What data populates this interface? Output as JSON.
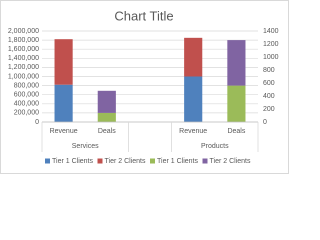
{
  "chart_data": {
    "type": "stacked-bar",
    "title": "Chart Title",
    "category_groups": [
      {
        "label": "Services",
        "categories": [
          "Revenue",
          "Deals"
        ]
      },
      {
        "label": null,
        "categories": [
          null
        ]
      },
      {
        "label": "Products",
        "categories": [
          "Revenue",
          "Deals"
        ]
      }
    ],
    "series": [
      {
        "name": "Tier 1 Clients",
        "color": "#4f81bd",
        "axis": "y",
        "values": [
          820000,
          null,
          null,
          1000000,
          null
        ]
      },
      {
        "name": "Tier 2 Clients",
        "color": "#c0504d",
        "axis": "y",
        "values": [
          1000000,
          null,
          null,
          850000,
          null
        ]
      },
      {
        "name": "Tier 1 Clients",
        "color": "#9bbb59",
        "axis": "y2",
        "values": [
          null,
          140,
          null,
          null,
          560
        ]
      },
      {
        "name": "Tier 2 Clients",
        "color": "#8064a2",
        "axis": "y2",
        "values": [
          null,
          340,
          null,
          null,
          700
        ]
      }
    ],
    "ylim": [
      0,
      2000000
    ],
    "yticks": [
      0,
      {
        "value": 200000,
        "label": "200,000"
      },
      {
        "value": 400000,
        "label": "400,000"
      },
      {
        "value": 600000,
        "label": "600,000"
      },
      {
        "value": 800000,
        "label": "800,000"
      },
      {
        "value": 1000000,
        "label": "1,000,000"
      },
      {
        "value": 1200000,
        "label": "1,200,000"
      },
      {
        "value": 1400000,
        "label": "1,400,000"
      },
      {
        "value": 1600000,
        "label": "1,600,000"
      },
      {
        "value": 1800000,
        "label": "1,800,000"
      },
      {
        "value": 2000000,
        "label": "2,000,000"
      }
    ],
    "y2lim": [
      0,
      1400
    ],
    "y2ticks": [
      0,
      200,
      400,
      600,
      800,
      1000,
      1200,
      1400
    ],
    "grid": true,
    "legend": "bottom"
  }
}
